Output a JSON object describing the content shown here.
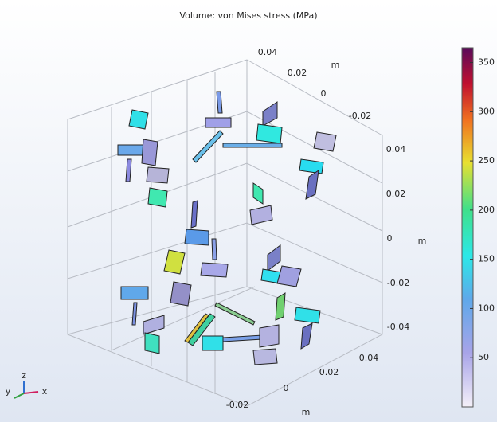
{
  "chart_data": {
    "type": "volume",
    "title": "Volume: von Mises stress (MPa)",
    "colorbar": {
      "ylim": [
        0,
        365
      ],
      "yticks": [
        50,
        100,
        150,
        200,
        250,
        300,
        350
      ]
    },
    "axes": [
      {
        "ticks": [
          0.04,
          0.02,
          0,
          -0.02
        ],
        "unit": "m"
      },
      {
        "ticks": [
          0.04,
          0.02,
          0,
          -0.02,
          -0.04
        ],
        "unit": "m"
      },
      {
        "ticks": [
          0.04,
          0.02,
          0,
          -0.02
        ],
        "unit": "m"
      }
    ],
    "triad": [
      "z",
      "x",
      "y"
    ]
  }
}
